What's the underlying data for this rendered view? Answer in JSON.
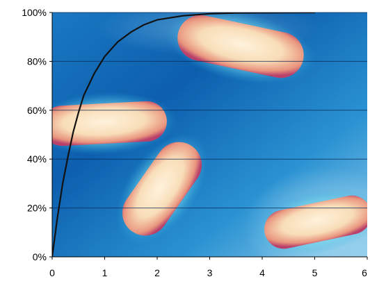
{
  "chart_data": {
    "type": "line",
    "title": "",
    "xlabel": "",
    "ylabel": "",
    "xlim": [
      0,
      6
    ],
    "ylim": [
      0,
      100
    ],
    "x_ticks": [
      0,
      1,
      2,
      3,
      4,
      5,
      6
    ],
    "x_tick_labels": [
      "0",
      "1",
      "2",
      "3",
      "4",
      "5",
      "6"
    ],
    "y_ticks": [
      0,
      20,
      40,
      60,
      80,
      100
    ],
    "y_tick_labels": [
      "0%",
      "20%",
      "40%",
      "60%",
      "80%",
      "100%"
    ],
    "grid": "horizontal",
    "legend": "none",
    "background": "microscope image of rod-shaped bacteria (pink cells on blue-cyan field)",
    "series": [
      {
        "color": "#111111",
        "x": [
          0,
          0.1,
          0.2,
          0.3,
          0.4,
          0.5,
          0.6,
          0.8,
          1.0,
          1.25,
          1.5,
          1.75,
          2.0,
          2.5,
          3.0,
          3.5,
          4.0,
          4.5,
          5.0
        ],
        "y": [
          0,
          16,
          30,
          41,
          51,
          59,
          66,
          75,
          82,
          88,
          92,
          95,
          97,
          98.7,
          99.5,
          99.8,
          99.9,
          99.95,
          100
        ]
      }
    ]
  },
  "colors": {
    "bg_deep": "#0a5aa8",
    "bg_mid": "#1e8fd0",
    "bg_light": "#7cc6ea",
    "halo": "#8fe0ef",
    "cell_core": "#fbe8c8",
    "cell_edge": "#e8907a",
    "cell_rim": "#b8406a",
    "gridline": "#0a2a55",
    "curve": "#111111"
  }
}
